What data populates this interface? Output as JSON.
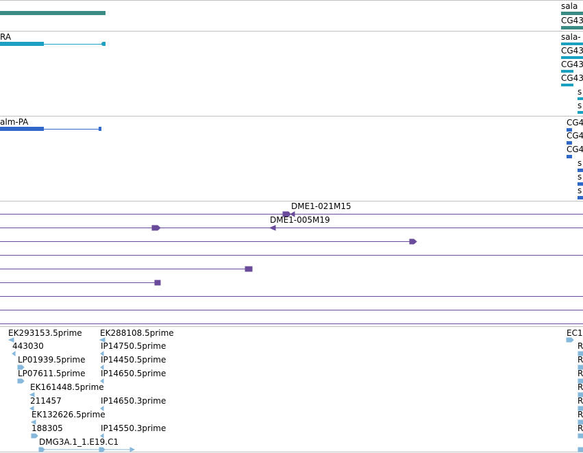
{
  "colors": {
    "gene": "#3a8b84",
    "transcript": "#1aa0c0",
    "cds": "#2f68c8",
    "clone": "#6a4a9a",
    "est": "#86b8dc",
    "divider": "#c0c0c0"
  },
  "gene_track": {
    "labels": [
      "sala",
      "CG43"
    ]
  },
  "transcript_track": {
    "left_label": "RA",
    "right_labels": [
      "sala-",
      "CG43",
      "CG43",
      "CG43",
      "s",
      "s"
    ]
  },
  "cds_track": {
    "left_label": "alm-PA",
    "right_labels": [
      "CG4",
      "CG4",
      "CG4",
      "s",
      "s",
      "s"
    ]
  },
  "clone_track": {
    "labels": [
      "DME1-021M15",
      "DME1-005M19"
    ]
  },
  "est_track": {
    "col1": [
      "EK293153.5prime",
      "443030",
      "LP01939.5prime",
      "LP07611.5prime",
      "EK161448.5prime",
      "211457",
      "EK132626.5prime",
      "188305",
      "DMG3A.1_1.E19.C1"
    ],
    "col2": [
      "EK288108.5prime",
      "IP14750.5prime",
      "IP14450.5prime",
      "IP14650.5prime",
      "IP14650.3prime",
      "IP14550.3prime"
    ],
    "right_labels": [
      "EC1",
      "R",
      "R",
      "R",
      "R",
      "R",
      "R",
      "R"
    ]
  }
}
